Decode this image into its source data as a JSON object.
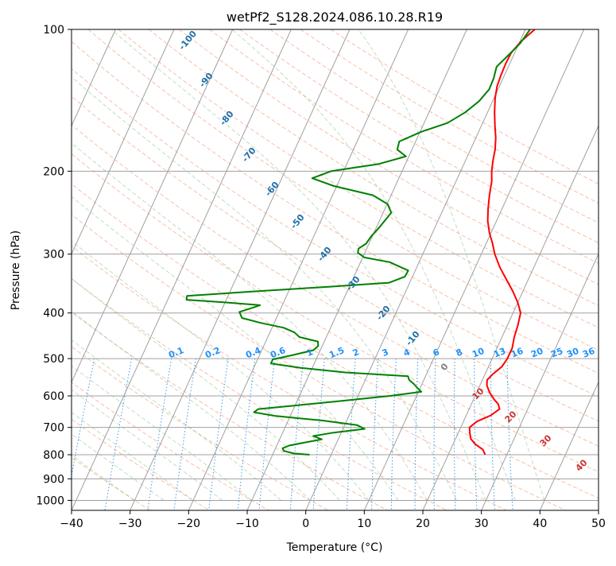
{
  "chart_data": {
    "type": "skew-t",
    "title": "wetPf2_S128.2024.086.10.28.R19",
    "xlabel": "Temperature (°C)",
    "ylabel": "Pressure (hPa)",
    "xlim": [
      -40,
      50
    ],
    "ylim": [
      1050,
      100
    ],
    "y_scale": "log",
    "x_ticks": [
      "−40",
      "−30",
      "−20",
      "−10",
      "0",
      "10",
      "20",
      "30",
      "40",
      "50"
    ],
    "x_tick_values": [
      -40,
      -30,
      -20,
      -10,
      0,
      10,
      20,
      30,
      40,
      50
    ],
    "y_ticks": [
      "100",
      "200",
      "300",
      "400",
      "500",
      "600",
      "700",
      "800",
      "900",
      "1000"
    ],
    "y_tick_values": [
      100,
      200,
      300,
      400,
      500,
      600,
      700,
      800,
      900,
      1000
    ],
    "grid": true,
    "colors": {
      "temperature": "#ff0000",
      "dewpoint": "#008000",
      "dry_adiabat_label": "#cc3333",
      "moist_adiabat_label": "#1f6fa8",
      "mixing_ratio_label": "#1e90ff",
      "isotherm": "#a0a0a0",
      "zero_label": "#808080"
    },
    "series": [
      {
        "name": "",
        "color": "#ff0000",
        "points": [
          [
            800,
            26.3
          ],
          [
            780,
            25.5
          ],
          [
            760,
            23.8
          ],
          [
            740,
            22.6
          ],
          [
            720,
            22.0
          ],
          [
            700,
            21.5
          ],
          [
            680,
            22.3
          ],
          [
            660,
            24.2
          ],
          [
            640,
            25.2
          ],
          [
            625,
            24.6
          ],
          [
            610,
            23.5
          ],
          [
            590,
            22.2
          ],
          [
            570,
            21.2
          ],
          [
            555,
            20.8
          ],
          [
            540,
            21.3
          ],
          [
            520,
            22.3
          ],
          [
            500,
            22.6
          ],
          [
            475,
            22.6
          ],
          [
            450,
            22.1
          ],
          [
            425,
            21.8
          ],
          [
            400,
            21.3
          ],
          [
            380,
            20.0
          ],
          [
            360,
            18.3
          ],
          [
            340,
            16.3
          ],
          [
            320,
            14.2
          ],
          [
            300,
            12.3
          ],
          [
            285,
            11.1
          ],
          [
            270,
            9.7
          ],
          [
            255,
            8.5
          ],
          [
            240,
            7.6
          ],
          [
            225,
            6.8
          ],
          [
            210,
            6.1
          ],
          [
            200,
            5.3
          ],
          [
            190,
            4.7
          ],
          [
            180,
            4.2
          ],
          [
            170,
            3.4
          ],
          [
            160,
            2.3
          ],
          [
            150,
            1.2
          ],
          [
            140,
            0.2
          ],
          [
            132,
            -0.4
          ],
          [
            125,
            -0.6
          ],
          [
            118,
            -0.7
          ],
          [
            112,
            -0.6
          ],
          [
            106,
            0.2
          ],
          [
            100,
            1.6
          ]
        ]
      },
      {
        "name": "",
        "color": "#008000",
        "points": [
          [
            800,
            -3.7
          ],
          [
            795,
            -6.5
          ],
          [
            785,
            -8.4
          ],
          [
            775,
            -8.8
          ],
          [
            765,
            -7.9
          ],
          [
            752,
            -5.1
          ],
          [
            742,
            -2.8
          ],
          [
            730,
            -4.5
          ],
          [
            718,
            -1.3
          ],
          [
            705,
            3.7
          ],
          [
            692,
            2.1
          ],
          [
            677,
            -4.0
          ],
          [
            662,
            -12.5
          ],
          [
            650,
            -16.5
          ],
          [
            640,
            -16.0
          ],
          [
            628,
            -9.5
          ],
          [
            615,
            -2.5
          ],
          [
            600,
            5.5
          ],
          [
            588,
            10.5
          ],
          [
            577,
            9.5
          ],
          [
            567,
            8.7
          ],
          [
            555,
            7.5
          ],
          [
            545,
            7.0
          ],
          [
            535,
            -4.0
          ],
          [
            523,
            -12.0
          ],
          [
            512,
            -17.4
          ],
          [
            502,
            -17.4
          ],
          [
            492,
            -14.5
          ],
          [
            480,
            -11.2
          ],
          [
            470,
            -10.7
          ],
          [
            460,
            -11.1
          ],
          [
            450,
            -14.6
          ],
          [
            440,
            -15.8
          ],
          [
            430,
            -18.0
          ],
          [
            420,
            -22.3
          ],
          [
            410,
            -25.9
          ],
          [
            398,
            -26.8
          ],
          [
            390,
            -24.9
          ],
          [
            385,
            -23.8
          ],
          [
            380,
            -29.8
          ],
          [
            375,
            -36.8
          ],
          [
            368,
            -37.0
          ],
          [
            360,
            -26.0
          ],
          [
            352,
            -13.5
          ],
          [
            345,
            -3.5
          ],
          [
            335,
            -1.3
          ],
          [
            325,
            -1.2
          ],
          [
            312,
            -5.0
          ],
          [
            305,
            -9.7
          ],
          [
            298,
            -11.2
          ],
          [
            292,
            -11.4
          ],
          [
            285,
            -10.5
          ],
          [
            275,
            -10.2
          ],
          [
            265,
            -9.6
          ],
          [
            255,
            -9.1
          ],
          [
            245,
            -8.6
          ],
          [
            235,
            -9.9
          ],
          [
            225,
            -13.1
          ],
          [
            215,
            -20.5
          ],
          [
            207,
            -24.8
          ],
          [
            200,
            -22.1
          ],
          [
            193,
            -14.5
          ],
          [
            186,
            -10.5
          ],
          [
            180,
            -12.5
          ],
          [
            173,
            -12.8
          ],
          [
            165,
            -9.8
          ],
          [
            158,
            -6.0
          ],
          [
            150,
            -3.8
          ],
          [
            142,
            -2.3
          ],
          [
            134,
            -1.5
          ],
          [
            127,
            -1.6
          ],
          [
            120,
            -2.0
          ],
          [
            113,
            -0.8
          ],
          [
            107,
            0.2
          ],
          [
            100,
            0.8
          ]
        ]
      }
    ],
    "dry_adiabat_labels": [
      "10",
      "20",
      "30",
      "40"
    ],
    "moist_adiabat_labels": [
      "-100",
      "-90",
      "-80",
      "-70",
      "-60",
      "-50",
      "-40",
      "-30",
      "-20",
      "-10",
      "0"
    ],
    "mixing_ratio_labels": [
      "0.1",
      "0.2",
      "0.4",
      "0.6",
      "1",
      "1.5",
      "2",
      "3",
      "4",
      "6",
      "8",
      "10",
      "13",
      "16",
      "20",
      "25",
      "30",
      "36"
    ]
  }
}
